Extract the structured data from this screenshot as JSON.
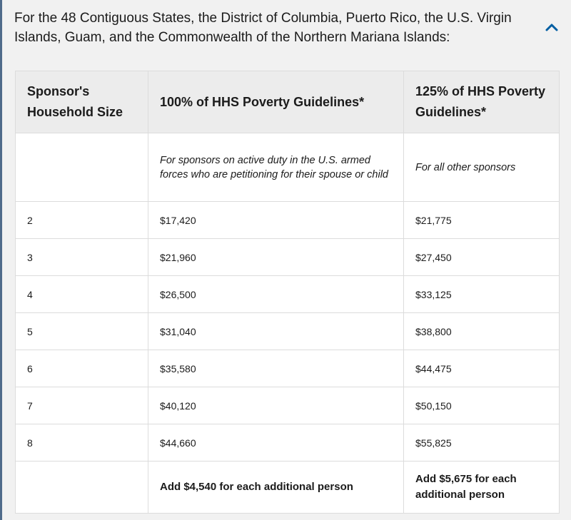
{
  "accordion": {
    "title": "For the 48 Contiguous States, the District of Columbia, Puerto Rico, the U.S. Virgin Islands, Guam, and the Commonwealth of the Northern Mariana Islands:",
    "toggle_icon": "chevron-up-icon",
    "accent_color": "#005ea2"
  },
  "table": {
    "headers": [
      "Sponsor's Household Size",
      "100% of HHS Poverty Guidelines*",
      "125% of HHS Poverty Guidelines*"
    ],
    "notes": [
      "",
      "For sponsors on active duty in the U.S. armed forces who are petitioning for their spouse or child",
      "For all other sponsors"
    ],
    "rows": [
      [
        "2",
        "$17,420",
        "$21,775"
      ],
      [
        "3",
        "$21,960",
        "$27,450"
      ],
      [
        "4",
        "$26,500",
        "$33,125"
      ],
      [
        "5",
        "$31,040",
        "$38,800"
      ],
      [
        "6",
        "$35,580",
        "$44,475"
      ],
      [
        "7",
        "$40,120",
        "$50,150"
      ],
      [
        "8",
        "$44,660",
        "$55,825"
      ]
    ],
    "footer": [
      "",
      "Add $4,540 for each additional person",
      "Add $5,675 for each additional person"
    ]
  }
}
